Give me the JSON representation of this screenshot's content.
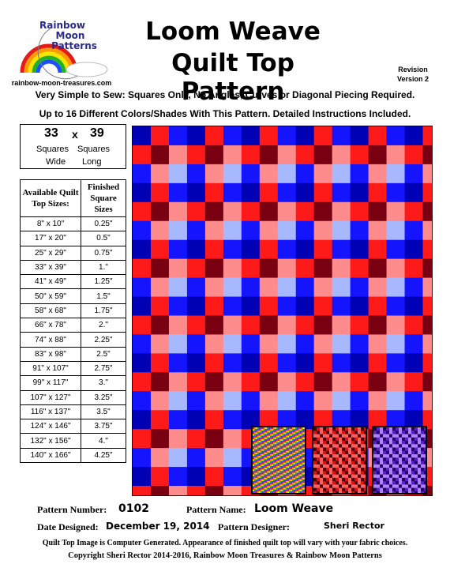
{
  "logo": {
    "line1": "Rainbow",
    "line2": "Moon",
    "line3": "Patterns",
    "url": "rainbow-moon-treasures.com"
  },
  "title": {
    "line1": "Loom Weave",
    "line2": "Quilt Top Pattern"
  },
  "revision": {
    "label": "Revision",
    "version": "Version 2"
  },
  "tagline1": "Very Simple to Sew: Squares Only, No Angles, Curves or Diagonal Piecing Required.",
  "tagline2": "Up to 16 Different Colors/Shades With This Pattern. Detailed Instructions Included.",
  "dimensions": {
    "wide_count": "33",
    "times": "x",
    "long_count": "39",
    "squares1": "Squares",
    "squares2": "Squares",
    "wide": "Wide",
    "long": "Long"
  },
  "sizes_table": {
    "header_size": "Available Quilt Top Sizes:",
    "header_square": "Finished Square Sizes",
    "rows": [
      {
        "size": "8\" x 10\"",
        "square": "0.25\""
      },
      {
        "size": "17\" x 20\"",
        "square": "0.5\""
      },
      {
        "size": "25\" x 29\"",
        "square": "0.75\""
      },
      {
        "size": "33\" x 39\"",
        "square": "1.\""
      },
      {
        "size": "41\" x 49\"",
        "square": "1.25\""
      },
      {
        "size": "50\" x 59\"",
        "square": "1.5\""
      },
      {
        "size": "58\" x 68\"",
        "square": "1.75\""
      },
      {
        "size": "66\" x 78\"",
        "square": "2.\""
      },
      {
        "size": "74\" x 88\"",
        "square": "2.25\""
      },
      {
        "size": "83\" x 98\"",
        "square": "2.5\""
      },
      {
        "size": "91\" x 107\"",
        "square": "2.75\""
      },
      {
        "size": "99\" x 117\"",
        "square": "3.\""
      },
      {
        "size": "107\" x 127\"",
        "square": "3.25\""
      },
      {
        "size": "116\" x 137\"",
        "square": "3.5\""
      },
      {
        "size": "124\" x 146\"",
        "square": "3.75\""
      },
      {
        "size": "132\" x 156\"",
        "square": "4.\""
      },
      {
        "size": "140\" x 166\"",
        "square": "4.25\""
      }
    ]
  },
  "quilt_colors": {
    "dark_blue": "#0000b4",
    "blue": "#1414ff",
    "light_blue": "#a8b8ff",
    "red": "#ff1a1a",
    "dark_red": "#780010",
    "pink": "#ff8c8c"
  },
  "footer": {
    "pattern_number_label": "Pattern Number:",
    "pattern_number": "0102",
    "pattern_name_label": "Pattern Name:",
    "pattern_name": "Loom Weave",
    "date_label": "Date Designed:",
    "date": "December 19, 2014",
    "designer_label": "Pattern Designer:",
    "designer": "Sheri Rector",
    "disclaimer": "Quilt Top Image is Computer Generated. Appearance of finished quilt top will vary with your fabric choices.",
    "copyright": "Copyright Sheri Rector 2014-2016, Rainbow Moon Treasures & Rainbow Moon Patterns"
  }
}
